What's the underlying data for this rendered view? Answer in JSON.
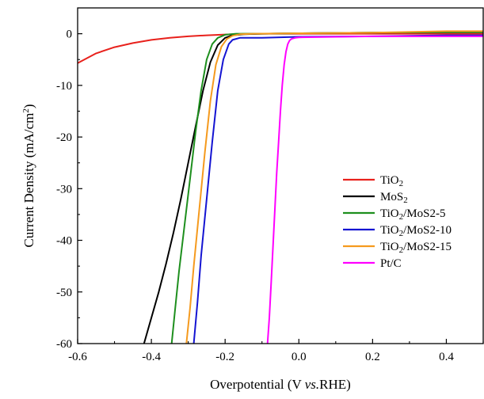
{
  "chart_data": {
    "type": "line",
    "title": "",
    "xlabel": {
      "prefix": "Overpotential (V ",
      "italic": "vs.",
      "suffix": "RHE)"
    },
    "ylabel": {
      "main": "Current Density  (mA/cm",
      "sup": "2",
      "close": ")"
    },
    "xlim": [
      -0.6,
      0.5
    ],
    "ylim": [
      -60,
      5
    ],
    "xticks": [
      -0.6,
      -0.4,
      -0.2,
      0.0,
      0.2,
      0.4
    ],
    "xtick_labels": [
      "-0.6",
      "-0.4",
      "-0.2",
      "0.0",
      "0.2",
      "0.4"
    ],
    "yticks": [
      0,
      -10,
      -20,
      -30,
      -40,
      -50,
      -60
    ],
    "ytick_labels": [
      "0",
      "-10",
      "-20",
      "-30",
      "-40",
      "-50",
      "-60"
    ],
    "grid": false,
    "legend_position": "center-right",
    "series": [
      {
        "name": "TiO2",
        "label": {
          "base": "TiO",
          "sub": "2",
          "rest": ""
        },
        "color": "#e8211c",
        "x": [
          -0.6,
          -0.55,
          -0.5,
          -0.45,
          -0.4,
          -0.35,
          -0.3,
          -0.25,
          -0.2,
          -0.15,
          -0.1,
          -0.05,
          0.0,
          0.1,
          0.2,
          0.3,
          0.4,
          0.5
        ],
        "y": [
          -5.7,
          -3.8,
          -2.6,
          -1.8,
          -1.2,
          -0.8,
          -0.5,
          -0.3,
          -0.15,
          -0.05,
          0,
          0,
          0,
          0,
          0,
          0,
          0,
          0
        ]
      },
      {
        "name": "MoS2",
        "label": {
          "base": "MoS",
          "sub": "2",
          "rest": ""
        },
        "color": "#000000",
        "x": [
          -0.42,
          -0.4,
          -0.38,
          -0.36,
          -0.34,
          -0.32,
          -0.3,
          -0.28,
          -0.26,
          -0.24,
          -0.22,
          -0.2,
          -0.18,
          -0.15,
          -0.1,
          0.0,
          0.2,
          0.4,
          0.5
        ],
        "y": [
          -60,
          -55,
          -50,
          -44.5,
          -38.5,
          -32,
          -25,
          -18,
          -11,
          -5.5,
          -2.2,
          -0.8,
          -0.3,
          -0.1,
          0,
          0.1,
          0.2,
          0.3,
          0.3
        ]
      },
      {
        "name": "TiO2/MoS2-5",
        "label": {
          "base": "TiO",
          "sub": "2",
          "rest": "/MoS2-5"
        },
        "color": "#1e8f1e",
        "x": [
          -0.345,
          -0.335,
          -0.325,
          -0.31,
          -0.295,
          -0.28,
          -0.265,
          -0.25,
          -0.235,
          -0.22,
          -0.2,
          -0.17,
          -0.1,
          0.0,
          0.2,
          0.4,
          0.5
        ],
        "y": [
          -60,
          -53,
          -46,
          -37,
          -28,
          -19,
          -11,
          -5,
          -2,
          -0.8,
          -0.2,
          0,
          0,
          0.1,
          0.2,
          0.3,
          0.3
        ]
      },
      {
        "name": "TiO2/MoS2-10",
        "label": {
          "base": "TiO",
          "sub": "2",
          "rest": "/MoS2-10"
        },
        "color": "#1414d2",
        "x": [
          -0.285,
          -0.275,
          -0.265,
          -0.25,
          -0.235,
          -0.22,
          -0.205,
          -0.19,
          -0.18,
          -0.16,
          -0.13,
          -0.1,
          0.0,
          0.2,
          0.4,
          0.5
        ],
        "y": [
          -60,
          -52,
          -43,
          -32,
          -21,
          -11,
          -5,
          -2,
          -1.2,
          -0.8,
          -0.8,
          -0.8,
          -0.6,
          -0.5,
          -0.3,
          -0.3
        ]
      },
      {
        "name": "TiO2/MoS2-15",
        "label": {
          "base": "TiO",
          "sub": "2",
          "rest": "/MoS2-15"
        },
        "color": "#f59a1e",
        "x": [
          -0.305,
          -0.295,
          -0.285,
          -0.27,
          -0.255,
          -0.24,
          -0.225,
          -0.21,
          -0.195,
          -0.18,
          -0.16,
          -0.12,
          0.0,
          0.2,
          0.4,
          0.5
        ],
        "y": [
          -60,
          -53,
          -45,
          -34,
          -23,
          -13,
          -6,
          -2.5,
          -1,
          -0.4,
          -0.1,
          0,
          0.1,
          0.2,
          0.5,
          0.5
        ]
      },
      {
        "name": "Pt/C",
        "label": {
          "base": "Pt/C",
          "sub": "",
          "rest": ""
        },
        "color": "#ff00ff",
        "x": [
          -0.085,
          -0.08,
          -0.075,
          -0.07,
          -0.065,
          -0.06,
          -0.055,
          -0.05,
          -0.045,
          -0.04,
          -0.035,
          -0.03,
          -0.025,
          -0.02,
          -0.01,
          0.0,
          0.1,
          0.2,
          0.4,
          0.5
        ],
        "y": [
          -60,
          -55,
          -48,
          -41,
          -34,
          -27,
          -21,
          -15,
          -10,
          -6,
          -3.5,
          -2,
          -1.3,
          -1.0,
          -0.8,
          -0.7,
          -0.6,
          -0.5,
          -0.5,
          -0.5
        ]
      }
    ]
  }
}
